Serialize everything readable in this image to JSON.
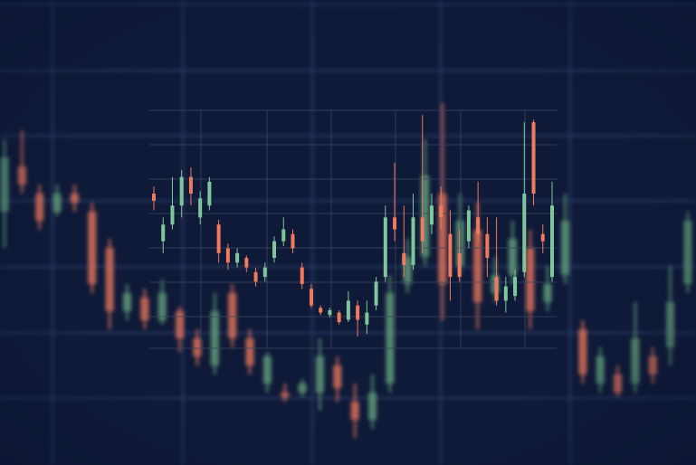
{
  "chart_data": [
    {
      "type": "candlestick",
      "up_color": "#5f9a78",
      "down_color": "#d9705a",
      "ylim": [
        0,
        514
      ],
      "open": [
        280,
        330,
        300,
        280,
        300,
        280,
        240,
        170,
        185,
        160,
        170,
        140,
        110,
        190,
        140,
        90,
        80,
        80,
        80,
        110,
        70,
        50,
        90,
        200,
        230,
        300,
        220,
        260,
        190,
        210,
        240,
        180,
        210,
        150,
        90,
        100,
        90,
        120,
        130,
        200
      ],
      "high": [
        360,
        370,
        310,
        310,
        310,
        290,
        250,
        200,
        195,
        205,
        175,
        150,
        190,
        200,
        150,
        125,
        90,
        95,
        140,
        120,
        90,
        100,
        210,
        250,
        360,
        400,
        300,
        290,
        230,
        270,
        260,
        220,
        300,
        160,
        130,
        110,
        180,
        130,
        220,
        280
      ],
      "low": [
        240,
        300,
        260,
        275,
        280,
        190,
        150,
        160,
        150,
        155,
        125,
        110,
        100,
        130,
        100,
        80,
        70,
        75,
        60,
        70,
        30,
        40,
        80,
        190,
        220,
        160,
        210,
        150,
        180,
        200,
        150,
        170,
        200,
        90,
        80,
        75,
        80,
        90,
        110,
        190
      ],
      "close": [
        340,
        310,
        270,
        300,
        290,
        200,
        170,
        190,
        160,
        190,
        140,
        120,
        170,
        140,
        110,
        120,
        75,
        90,
        120,
        85,
        50,
        80,
        190,
        230,
        320,
        200,
        270,
        180,
        210,
        250,
        170,
        200,
        270,
        100,
        120,
        80,
        140,
        100,
        180,
        270
      ]
    },
    {
      "type": "candlestick",
      "up_color": "#7fc79b",
      "down_color": "#f07a5c",
      "ylim": [
        0,
        100
      ],
      "open": [
        65,
        45,
        52,
        60,
        72,
        55,
        60,
        52,
        42,
        36,
        38,
        32,
        30,
        38,
        45,
        48,
        34,
        25,
        17,
        14,
        15,
        12,
        18,
        10,
        18,
        30,
        55,
        40,
        35,
        55,
        52,
        60,
        48,
        40,
        45,
        55,
        48,
        30,
        20,
        22,
        32,
        95,
        48,
        30
      ],
      "high": [
        68,
        55,
        72,
        75,
        76,
        66,
        72,
        54,
        44,
        42,
        39,
        34,
        36,
        47,
        55,
        50,
        36,
        27,
        18,
        17,
        16,
        24,
        20,
        20,
        30,
        60,
        78,
        60,
        65,
        98,
        65,
        68,
        58,
        50,
        60,
        70,
        55,
        55,
        30,
        33,
        95,
        96,
        52,
        70
      ],
      "low": [
        58,
        40,
        50,
        55,
        60,
        52,
        58,
        36,
        33,
        34,
        32,
        26,
        28,
        36,
        43,
        40,
        25,
        17,
        14,
        13,
        10,
        11,
        5,
        6,
        16,
        28,
        45,
        30,
        33,
        40,
        48,
        50,
        20,
        28,
        42,
        45,
        30,
        18,
        15,
        20,
        30,
        60,
        40,
        28
      ],
      "close": [
        62,
        52,
        60,
        72,
        65,
        63,
        70,
        40,
        36,
        40,
        34,
        28,
        34,
        45,
        50,
        42,
        27,
        18,
        15,
        16,
        11,
        20,
        12,
        15,
        28,
        55,
        50,
        35,
        55,
        45,
        60,
        55,
        30,
        30,
        58,
        48,
        38,
        20,
        26,
        30,
        65,
        65,
        45,
        60
      ]
    }
  ]
}
